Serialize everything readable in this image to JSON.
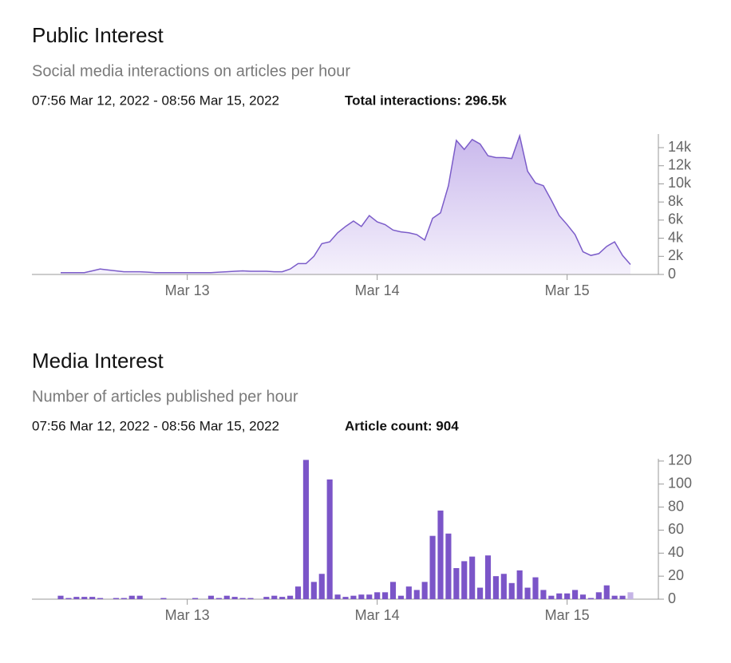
{
  "chart_data": [
    {
      "type": "area",
      "title": "Public Interest",
      "subtitle": "Social media interactions on articles per hour",
      "date_range": "07:56 Mar 12, 2022 - 08:56 Mar 15, 2022",
      "total": "Total interactions: 296.5k",
      "color": "#7b5cc9",
      "fill_top": "#c9b8ec",
      "fill_bottom": "#f5f1fc",
      "categories": [
        null,
        null,
        null,
        null,
        null,
        null,
        null,
        null,
        null,
        null,
        null,
        null,
        null,
        null,
        null,
        null,
        "Mar 13",
        null,
        null,
        null,
        null,
        null,
        null,
        null,
        null,
        null,
        null,
        null,
        null,
        null,
        null,
        null,
        null,
        null,
        null,
        null,
        null,
        null,
        null,
        null,
        "Mar 14",
        null,
        null,
        null,
        null,
        null,
        null,
        null,
        null,
        null,
        null,
        null,
        null,
        null,
        null,
        null,
        null,
        null,
        null,
        null,
        null,
        null,
        null,
        null,
        "Mar 15",
        null,
        null,
        null,
        null,
        null,
        null,
        null,
        null
      ],
      "values": [
        200,
        200,
        200,
        200,
        400,
        600,
        500,
        400,
        300,
        300,
        300,
        250,
        200,
        200,
        200,
        200,
        200,
        200,
        200,
        200,
        250,
        300,
        350,
        400,
        350,
        350,
        350,
        300,
        300,
        600,
        1200,
        1200,
        2000,
        3400,
        3600,
        4600,
        5300,
        5900,
        5300,
        6500,
        5800,
        5500,
        4900,
        4700,
        4600,
        4400,
        3800,
        6200,
        6800,
        9800,
        14800,
        13800,
        14900,
        14400,
        13100,
        12900,
        12900,
        12800,
        15300,
        11400,
        10100,
        9800,
        8200,
        6500,
        5500,
        4400,
        2500,
        2100,
        2300,
        3100,
        3600,
        2100,
        1100
      ],
      "ylim": [
        0,
        15500
      ],
      "yticks": [
        {
          "value": 0,
          "label": "0"
        },
        {
          "value": 2000,
          "label": "2k"
        },
        {
          "value": 4000,
          "label": "4k"
        },
        {
          "value": 6000,
          "label": "6k"
        },
        {
          "value": 8000,
          "label": "8k"
        },
        {
          "value": 10000,
          "label": "10k"
        },
        {
          "value": 12000,
          "label": "12k"
        },
        {
          "value": 14000,
          "label": "14k"
        }
      ]
    },
    {
      "type": "bar",
      "title": "Media Interest",
      "subtitle": "Number of articles published per hour",
      "date_range": "07:56 Mar 12, 2022 - 08:56 Mar 15, 2022",
      "total": "Article count: 904",
      "color": "#7b55c8",
      "last_bar_color": "#c5b4e6",
      "categories": [
        null,
        null,
        null,
        null,
        null,
        null,
        null,
        null,
        null,
        null,
        null,
        null,
        null,
        null,
        null,
        null,
        "Mar 13",
        null,
        null,
        null,
        null,
        null,
        null,
        null,
        null,
        null,
        null,
        null,
        null,
        null,
        null,
        null,
        null,
        null,
        null,
        null,
        null,
        null,
        null,
        null,
        "Mar 14",
        null,
        null,
        null,
        null,
        null,
        null,
        null,
        null,
        null,
        null,
        null,
        null,
        null,
        null,
        null,
        null,
        null,
        null,
        null,
        null,
        null,
        null,
        null,
        "Mar 15",
        null,
        null,
        null,
        null,
        null,
        null,
        null,
        null
      ],
      "values": [
        3,
        1,
        2,
        2,
        2,
        1,
        0,
        1,
        1,
        3,
        3,
        0,
        0,
        1,
        0,
        0,
        0,
        1,
        0,
        3,
        1,
        3,
        2,
        1,
        1,
        0,
        2,
        3,
        2,
        3,
        11,
        121,
        15,
        22,
        104,
        4,
        2,
        3,
        4,
        4,
        6,
        6,
        15,
        3,
        11,
        8,
        15,
        55,
        77,
        57,
        27,
        33,
        37,
        10,
        38,
        20,
        22,
        14,
        25,
        10,
        19,
        8,
        3,
        5,
        5,
        8,
        4,
        1,
        6,
        12,
        3,
        3,
        6
      ],
      "ylim": [
        0,
        122
      ],
      "yticks": [
        0,
        20,
        40,
        60,
        80,
        100,
        120
      ]
    }
  ]
}
